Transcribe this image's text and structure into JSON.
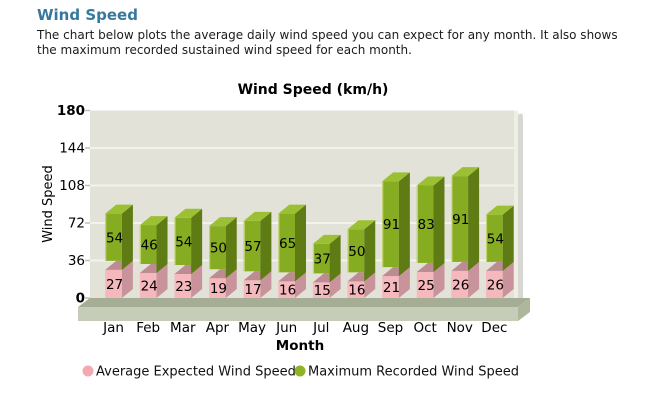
{
  "page": {
    "title": "Wind Speed",
    "description": "The chart below plots the average daily wind speed you can expect for any month. It also shows the maximum recorded sustained wind speed for each month."
  },
  "chart_data": {
    "type": "bar",
    "stacked": true,
    "title": "Wind Speed (km/h)",
    "xlabel": "Month",
    "ylabel": "Wind Speed",
    "ylim": [
      0,
      180
    ],
    "yticks": [
      0,
      36,
      72,
      108,
      144,
      180
    ],
    "grid": true,
    "legend_position": "bottom",
    "categories": [
      "Jan",
      "Feb",
      "Mar",
      "Apr",
      "May",
      "Jun",
      "Jul",
      "Aug",
      "Sep",
      "Oct",
      "Nov",
      "Dec"
    ],
    "series": [
      {
        "name": "Average Expected Wind Speed",
        "values": [
          27,
          24,
          23,
          19,
          17,
          16,
          15,
          16,
          21,
          25,
          26,
          26
        ]
      },
      {
        "name": "Maximum Recorded Wind Speed",
        "values": [
          54,
          46,
          54,
          50,
          57,
          65,
          37,
          50,
          91,
          83,
          91,
          54
        ]
      }
    ]
  },
  "colors": {
    "heading": "#37789e",
    "wall": "#e2e2d8",
    "gridline": "#f3f3ec",
    "tick": "#c0c0b6",
    "wall_edge_highlight": "#eeeee6",
    "wall_shadow": "#cbcbc3",
    "floor_top": "#a5ae94",
    "floor_front": "#c5ccb7",
    "floor_side": "#aeb79d",
    "avg_front": "#f5b8bd",
    "avg_side": "#c8939a",
    "avg_top": "#bd8b92",
    "max_front": "#86ad22",
    "max_side": "#5e7b14",
    "max_top": "#9cc033",
    "max_highlight": "#d9e48e",
    "legend_avg_dot": "#f2a9b0",
    "legend_max_dot": "#8cb426",
    "text": "#000000"
  }
}
